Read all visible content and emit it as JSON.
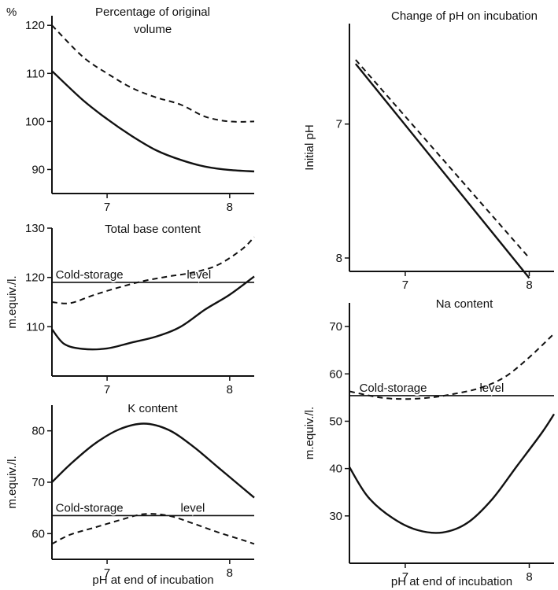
{
  "chart_data": [
    {
      "id": "volume",
      "type": "line",
      "title": "Percentage of original volume",
      "title_lines": [
        "Percentage of original",
        "volume"
      ],
      "unit_label": "%",
      "xlabel": "",
      "ylabel": "",
      "xlim": [
        6.55,
        8.2
      ],
      "ylim": [
        85,
        122
      ],
      "xticks": [
        7,
        8
      ],
      "xtick_labels": [
        "7",
        "8"
      ],
      "yticks": [
        90,
        100,
        110,
        120
      ],
      "ytick_labels": [
        "90",
        "100",
        "110",
        "120"
      ],
      "series": [
        {
          "style": "solid",
          "x": [
            6.55,
            6.8,
            7.0,
            7.2,
            7.4,
            7.6,
            7.8,
            8.0,
            8.2
          ],
          "y": [
            110.5,
            104.5,
            100.5,
            97,
            94,
            92,
            90.6,
            89.9,
            89.6
          ]
        },
        {
          "style": "dashed",
          "x": [
            6.55,
            6.8,
            7.0,
            7.2,
            7.4,
            7.6,
            7.8,
            8.0,
            8.2
          ],
          "y": [
            120,
            113.5,
            110,
            107,
            105,
            103.5,
            101,
            100,
            100
          ]
        }
      ]
    },
    {
      "id": "base",
      "type": "line",
      "title": "Total base content",
      "xlabel": "",
      "ylabel": "m.equiv./l.",
      "xlim": [
        6.55,
        8.2
      ],
      "ylim": [
        100,
        130
      ],
      "xticks": [
        7,
        8
      ],
      "xtick_labels": [
        "7",
        "8"
      ],
      "yticks": [
        110,
        120,
        130
      ],
      "ytick_labels": [
        "110",
        "120",
        "130"
      ],
      "reference": {
        "y": 119,
        "labels": [
          "Cold-storage",
          "level"
        ],
        "label_x": [
          6.58,
          7.65
        ]
      },
      "series": [
        {
          "style": "solid",
          "x": [
            6.55,
            6.65,
            6.8,
            7.0,
            7.2,
            7.4,
            7.6,
            7.8,
            8.0,
            8.2
          ],
          "y": [
            109.5,
            106.5,
            105.5,
            105.6,
            106.8,
            108,
            110,
            113.5,
            116.5,
            120.2
          ]
        },
        {
          "style": "dashed",
          "x": [
            6.55,
            6.7,
            6.9,
            7.1,
            7.3,
            7.5,
            7.7,
            7.9,
            8.1,
            8.2
          ],
          "y": [
            115,
            114.8,
            116.5,
            118,
            119.3,
            120.2,
            121,
            122.5,
            125.7,
            128.2
          ]
        }
      ]
    },
    {
      "id": "k",
      "type": "line",
      "title": "K content",
      "xlabel": "pH at end of incubation",
      "ylabel": "m.equiv./l.",
      "xlim": [
        6.55,
        8.2
      ],
      "ylim": [
        55,
        85
      ],
      "xticks": [
        7,
        8
      ],
      "xtick_labels": [
        "7",
        "8"
      ],
      "yticks": [
        60,
        70,
        80
      ],
      "ytick_labels": [
        "60",
        "70",
        "80"
      ],
      "reference": {
        "y": 63.5,
        "labels": [
          "Cold-storage",
          "level"
        ],
        "label_x": [
          6.58,
          7.6
        ]
      },
      "series": [
        {
          "style": "solid",
          "x": [
            6.55,
            6.7,
            6.9,
            7.1,
            7.3,
            7.5,
            7.7,
            7.9,
            8.1,
            8.2
          ],
          "y": [
            70,
            73.5,
            77.5,
            80.3,
            81.4,
            80.2,
            77,
            73,
            69,
            67
          ]
        },
        {
          "style": "dashed",
          "x": [
            6.55,
            6.7,
            6.9,
            7.1,
            7.3,
            7.5,
            7.7,
            7.9,
            8.1,
            8.2
          ],
          "y": [
            58,
            59.8,
            61.2,
            62.6,
            63.8,
            63.5,
            62,
            60.3,
            58.8,
            58
          ]
        }
      ]
    },
    {
      "id": "ph",
      "type": "line",
      "title": "Change of pH on incubation",
      "xlabel": "",
      "ylabel": "Initial pH",
      "xlim": [
        6.55,
        8.2
      ],
      "ylim": [
        8.1,
        6.25
      ],
      "xticks": [
        7,
        8
      ],
      "xtick_labels": [
        "7",
        "8"
      ],
      "yticks": [
        7,
        8
      ],
      "ytick_labels": [
        "7",
        "8"
      ],
      "series": [
        {
          "style": "solid",
          "x": [
            6.6,
            8.0
          ],
          "y": [
            6.55,
            8.15
          ]
        },
        {
          "style": "dashed",
          "x": [
            6.6,
            8.0
          ],
          "y": [
            6.52,
            8.0
          ]
        }
      ]
    },
    {
      "id": "na",
      "type": "line",
      "title": "Na content",
      "xlabel": "pH at end of incubation",
      "ylabel": "m.equiv./l.",
      "xlim": [
        6.55,
        8.2
      ],
      "ylim": [
        20,
        75
      ],
      "xticks": [
        7,
        8
      ],
      "xtick_labels": [
        "7",
        "8"
      ],
      "yticks": [
        30,
        40,
        50,
        60,
        70
      ],
      "ytick_labels": [
        "30",
        "40",
        "50",
        "60",
        "70"
      ],
      "reference": {
        "y": 55.4,
        "labels": [
          "Cold-storage",
          "level"
        ],
        "label_x": [
          6.63,
          7.6
        ]
      },
      "series": [
        {
          "style": "solid",
          "x": [
            6.55,
            6.7,
            6.9,
            7.1,
            7.3,
            7.5,
            7.7,
            7.9,
            8.1,
            8.2
          ],
          "y": [
            40.3,
            34,
            29.5,
            27,
            26.5,
            28.5,
            33.5,
            40.5,
            47.5,
            51.5
          ]
        },
        {
          "style": "dashed",
          "x": [
            6.55,
            6.8,
            7.0,
            7.2,
            7.4,
            7.6,
            7.8,
            8.0,
            8.2
          ],
          "y": [
            56.3,
            55,
            54.7,
            55,
            55.8,
            57,
            59.3,
            63.5,
            68.5
          ]
        }
      ]
    }
  ]
}
